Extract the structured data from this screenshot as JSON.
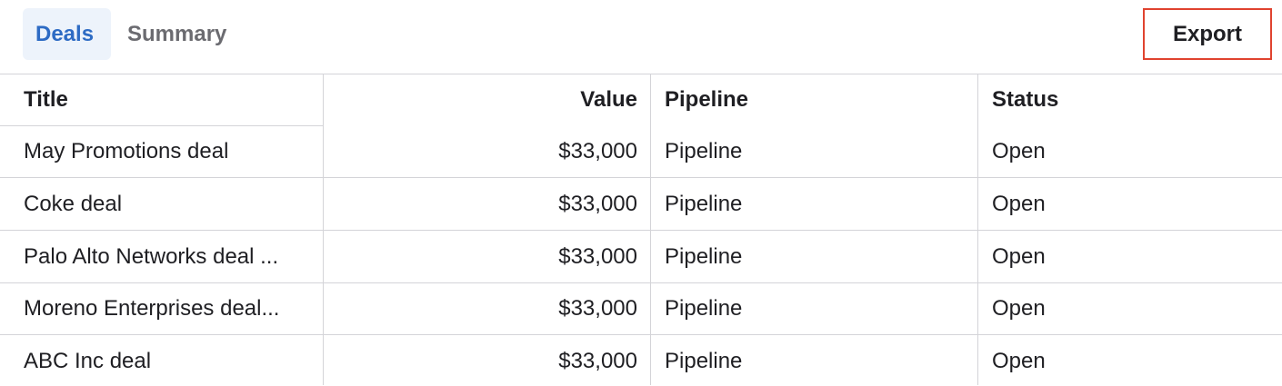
{
  "tabs": [
    {
      "label": "Deals",
      "active": true
    },
    {
      "label": "Summary",
      "active": false
    }
  ],
  "toolbar": {
    "export_label": "Export"
  },
  "table": {
    "columns": [
      "Title",
      "Value",
      "Pipeline",
      "Status"
    ],
    "rows": [
      {
        "title": "May Promotions deal",
        "value": "$33,000",
        "pipeline": "Pipeline",
        "status": "Open"
      },
      {
        "title": "Coke deal",
        "value": "$33,000",
        "pipeline": "Pipeline",
        "status": "Open"
      },
      {
        "title": "Palo Alto Networks deal ...",
        "value": "$33,000",
        "pipeline": "Pipeline",
        "status": "Open"
      },
      {
        "title": "Moreno Enterprises deal...",
        "value": "$33,000",
        "pipeline": "Pipeline",
        "status": "Open"
      },
      {
        "title": "ABC Inc deal",
        "value": "$33,000",
        "pipeline": "Pipeline",
        "status": "Open"
      }
    ]
  },
  "colors": {
    "active_tab_text": "#2d6bc4",
    "active_tab_bg": "#edf3fb",
    "inactive_tab_text": "#6b6b70",
    "export_border": "#e0432f",
    "grid_line": "#d4d4d8"
  }
}
